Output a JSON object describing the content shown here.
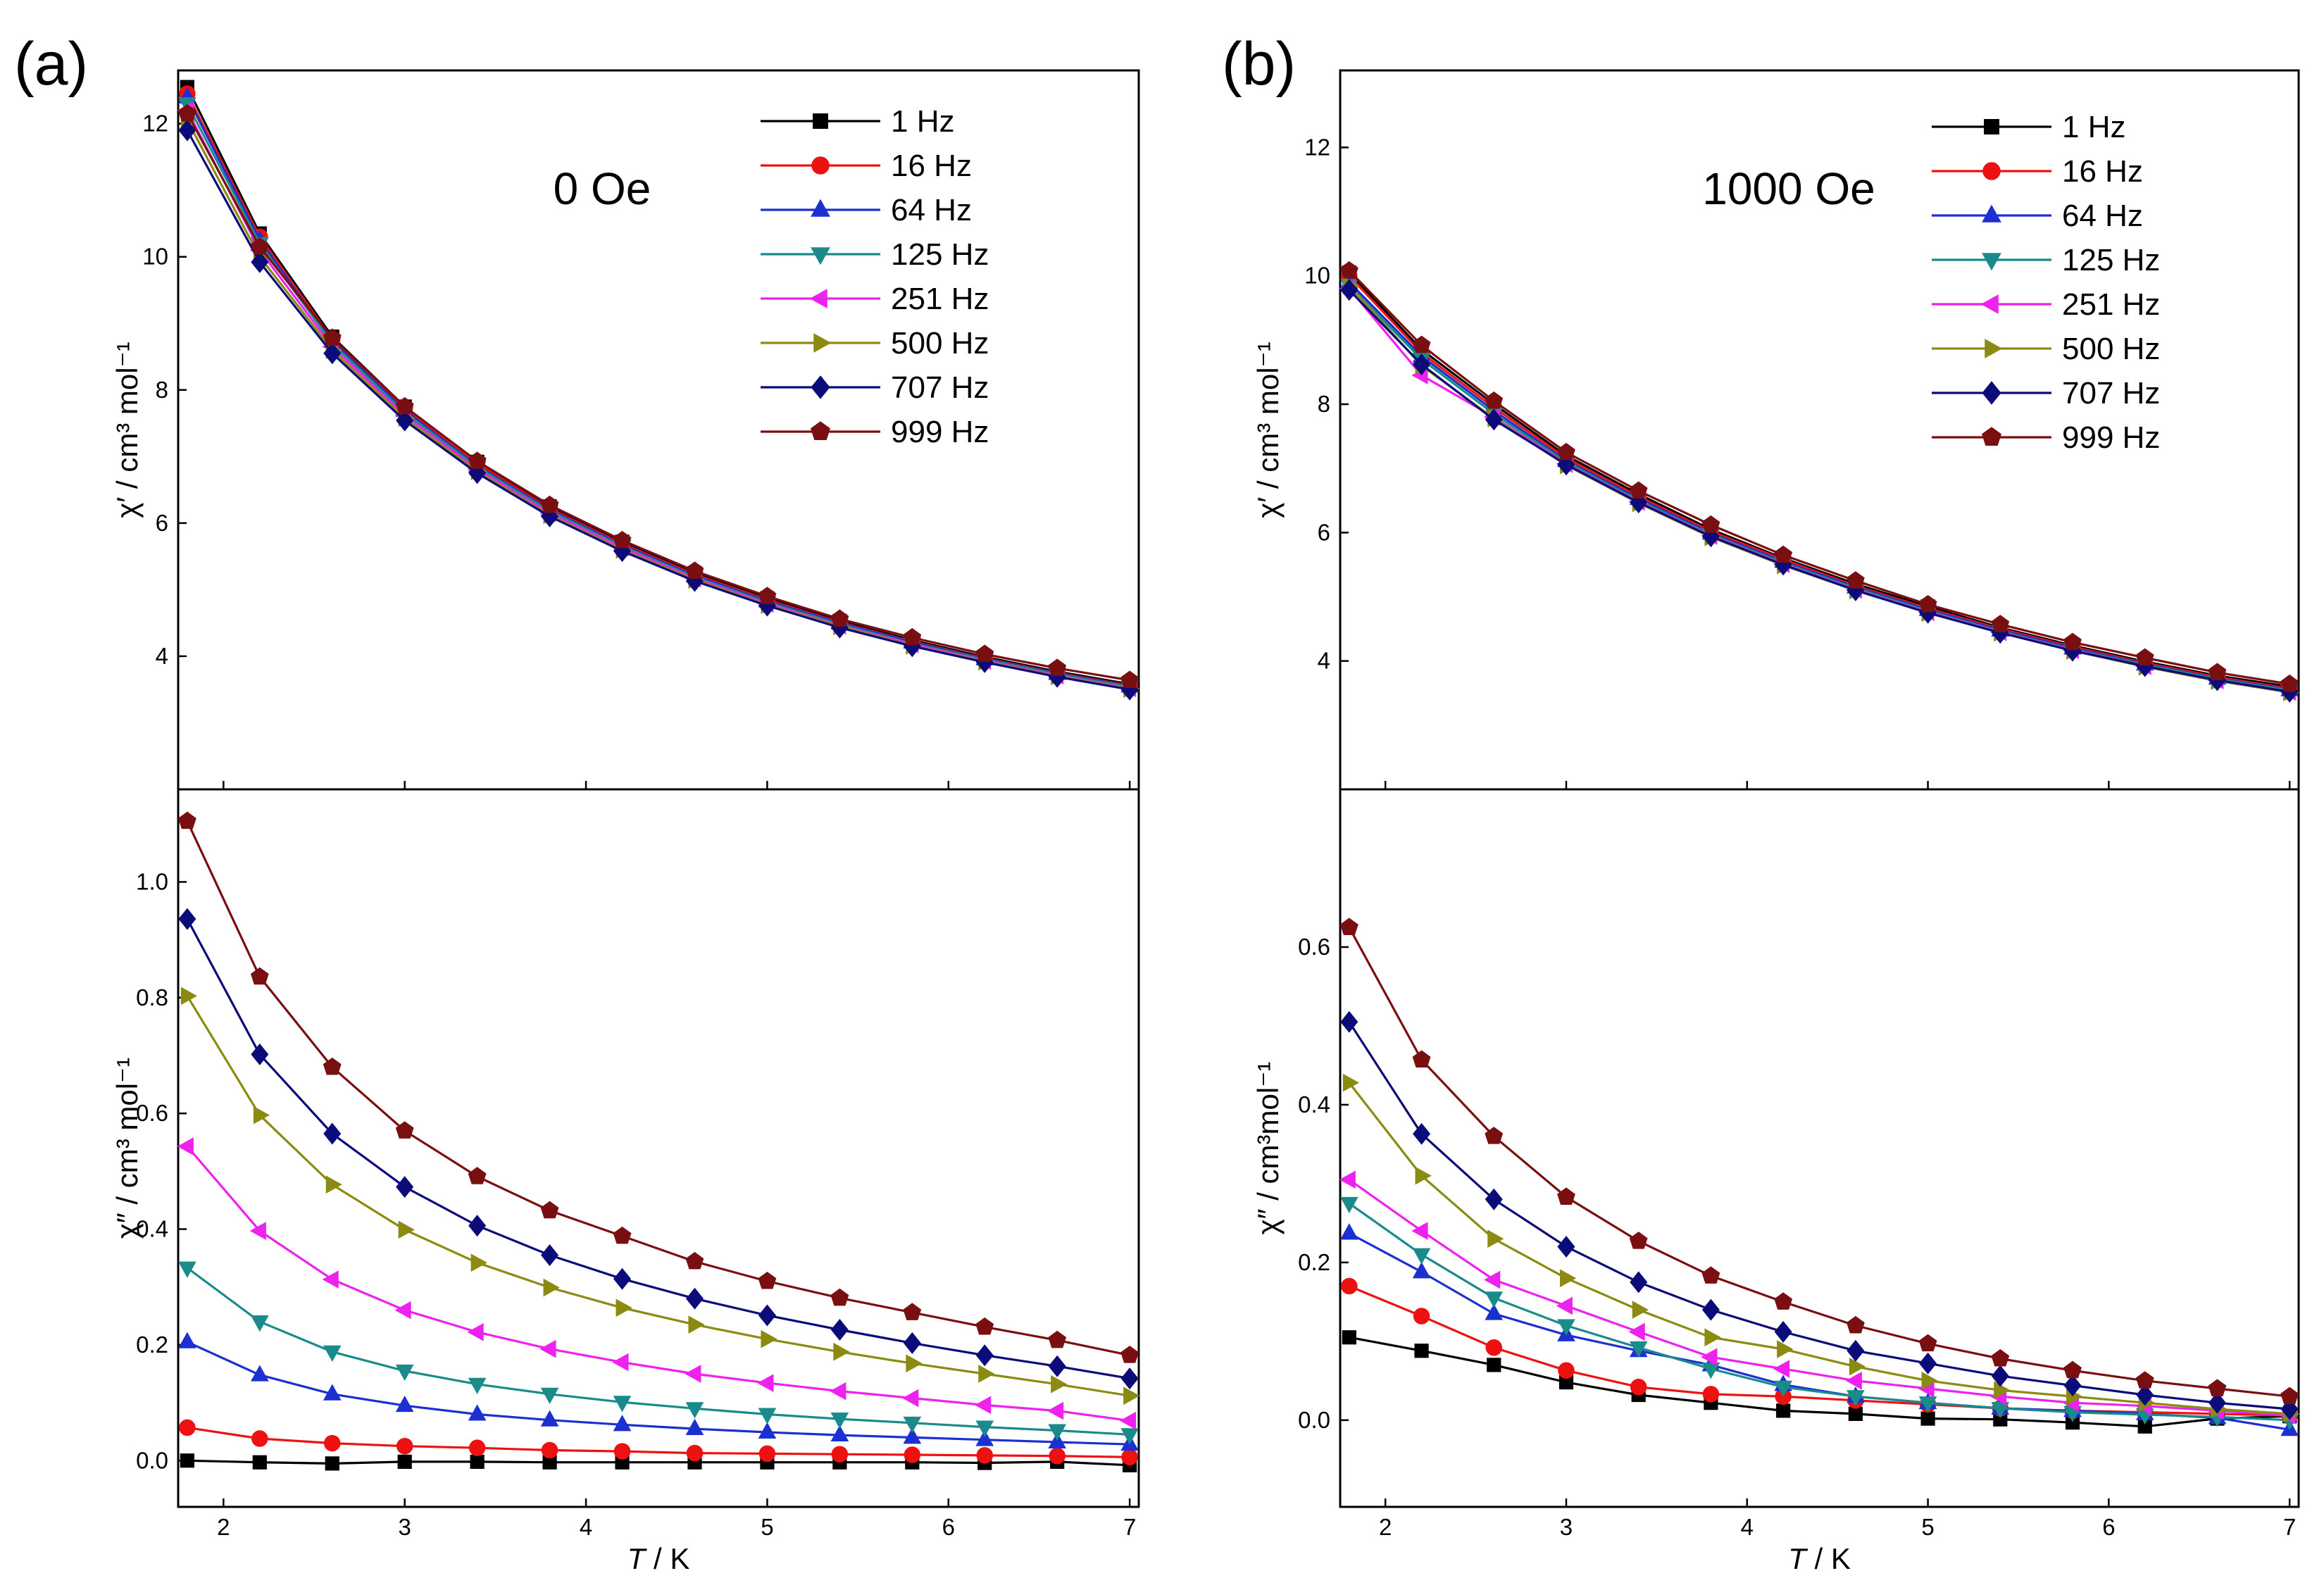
{
  "colors": {
    "series": [
      "#000000",
      "#ee1111",
      "#1c2fd1",
      "#1a8a8a",
      "#ee22ee",
      "#8b8b12",
      "#0b0b7a",
      "#7a0f12"
    ],
    "axis": "#000000"
  },
  "chart_data": [
    {
      "type": "line",
      "panel_label": "(a)",
      "field_label": "0 Oe",
      "x": [
        1.8,
        2.2,
        2.6,
        3.0,
        3.4,
        3.8,
        4.2,
        4.6,
        5.0,
        5.4,
        5.8,
        6.2,
        6.6,
        7.0
      ],
      "xlim": [
        1.75,
        7.05
      ],
      "xticks": [
        2,
        3,
        4,
        5,
        6,
        7
      ],
      "xlabel_italic": "T",
      "xlabel_rest": " / K",
      "legend": [
        "1 Hz",
        "16 Hz",
        "64 Hz",
        "125 Hz",
        "251 Hz",
        "500 Hz",
        "707 Hz",
        "999 Hz"
      ],
      "markers": [
        "square",
        "circle",
        "triangle-up",
        "triangle-down",
        "triangle-left",
        "triangle-right",
        "diamond",
        "pentagon"
      ],
      "upper": {
        "ylabel": "χ′ / cm³ mol⁻¹",
        "ylim": [
          2.0,
          12.8
        ],
        "yticks": [
          4,
          6,
          8,
          10,
          12
        ],
        "series": [
          {
            "name": "1 Hz",
            "values": [
              12.55,
              10.35,
              8.8,
              7.75,
              6.92,
              6.25,
              5.72,
              5.25,
              4.87,
              4.53,
              4.24,
              3.99,
              3.77,
              3.58
            ]
          },
          {
            "name": "16 Hz",
            "values": [
              12.45,
              10.3,
              8.76,
              7.72,
              6.89,
              6.22,
              5.69,
              5.23,
              4.85,
              4.51,
              4.22,
              3.97,
              3.75,
              3.56
            ]
          },
          {
            "name": "64 Hz",
            "values": [
              12.4,
              10.25,
              8.73,
              7.69,
              6.86,
              6.2,
              5.67,
              5.21,
              4.83,
              4.5,
              4.21,
              3.96,
              3.74,
              3.55
            ]
          },
          {
            "name": "125 Hz",
            "values": [
              12.3,
              10.2,
              8.7,
              7.66,
              6.84,
              6.18,
              5.65,
              5.19,
              4.81,
              4.48,
              4.19,
              3.95,
              3.73,
              3.54
            ]
          },
          {
            "name": "251 Hz",
            "values": [
              12.2,
              10.1,
              8.65,
              7.62,
              6.81,
              6.15,
              5.63,
              5.17,
              4.79,
              4.46,
              4.18,
              3.93,
              3.71,
              3.52
            ]
          },
          {
            "name": "500 Hz",
            "values": [
              12.05,
              10.0,
              8.6,
              7.58,
              6.78,
              6.12,
              5.6,
              5.15,
              4.77,
              4.45,
              4.16,
              3.92,
              3.7,
              3.51
            ]
          },
          {
            "name": "707 Hz",
            "values": [
              11.9,
              9.92,
              8.55,
              7.54,
              6.75,
              6.1,
              5.58,
              5.13,
              4.76,
              4.43,
              4.15,
              3.91,
              3.69,
              3.5
            ]
          },
          {
            "name": "999 Hz",
            "values": [
              12.15,
              10.15,
              8.78,
              7.75,
              6.93,
              6.27,
              5.74,
              5.28,
              4.9,
              4.56,
              4.28,
              4.03,
              3.82,
              3.64
            ]
          }
        ]
      },
      "lower": {
        "ylabel": "χ″ / cm³ mol⁻¹",
        "ylim": [
          -0.08,
          1.16
        ],
        "yticks": [
          0.0,
          0.2,
          0.4,
          0.6,
          0.8,
          1.0
        ],
        "series": [
          {
            "name": "1 Hz",
            "values": [
              0.0,
              -0.003,
              -0.005,
              -0.002,
              -0.002,
              -0.003,
              -0.003,
              -0.003,
              -0.003,
              -0.003,
              -0.003,
              -0.004,
              -0.002,
              -0.008
            ]
          },
          {
            "name": "16 Hz",
            "values": [
              0.057,
              0.038,
              0.03,
              0.025,
              0.022,
              0.018,
              0.016,
              0.013,
              0.012,
              0.011,
              0.01,
              0.009,
              0.008,
              0.006
            ]
          },
          {
            "name": "64 Hz",
            "values": [
              0.205,
              0.148,
              0.115,
              0.095,
              0.08,
              0.07,
              0.062,
              0.055,
              0.049,
              0.044,
              0.04,
              0.036,
              0.032,
              0.028
            ]
          },
          {
            "name": "125 Hz",
            "values": [
              0.333,
              0.24,
              0.188,
              0.155,
              0.132,
              0.115,
              0.101,
              0.09,
              0.08,
              0.072,
              0.065,
              0.058,
              0.052,
              0.045
            ]
          },
          {
            "name": "251 Hz",
            "values": [
              0.543,
              0.397,
              0.313,
              0.26,
              0.222,
              0.193,
              0.17,
              0.15,
              0.134,
              0.12,
              0.108,
              0.096,
              0.086,
              0.069
            ]
          },
          {
            "name": "500 Hz",
            "values": [
              0.803,
              0.597,
              0.477,
              0.399,
              0.342,
              0.299,
              0.264,
              0.235,
              0.21,
              0.188,
              0.168,
              0.15,
              0.132,
              0.112
            ]
          },
          {
            "name": "707 Hz",
            "values": [
              0.936,
              0.702,
              0.565,
              0.473,
              0.406,
              0.355,
              0.314,
              0.28,
              0.251,
              0.226,
              0.203,
              0.182,
              0.163,
              0.142
            ]
          },
          {
            "name": "999 Hz",
            "values": [
              1.105,
              0.836,
              0.68,
              0.57,
              0.491,
              0.432,
              0.388,
              0.344,
              0.31,
              0.281,
              0.256,
              0.231,
              0.208,
              0.182
            ]
          }
        ]
      }
    },
    {
      "type": "line",
      "panel_label": "(b)",
      "field_label": "1000 Oe",
      "x": [
        1.8,
        2.2,
        2.6,
        3.0,
        3.4,
        3.8,
        4.2,
        4.6,
        5.0,
        5.4,
        5.8,
        6.2,
        6.6,
        7.0
      ],
      "xlim": [
        1.75,
        7.05
      ],
      "xticks": [
        2,
        3,
        4,
        5,
        6,
        7
      ],
      "xlabel_italic": "T",
      "xlabel_rest": " / K",
      "legend": [
        "1 Hz",
        "16 Hz",
        "64 Hz",
        "125 Hz",
        "251 Hz",
        "500 Hz",
        "707 Hz",
        "999 Hz"
      ],
      "markers": [
        "square",
        "circle",
        "triangle-up",
        "triangle-down",
        "triangle-left",
        "triangle-right",
        "diamond",
        "pentagon"
      ],
      "upper": {
        "ylabel": "χ′ / cm³ mol⁻¹",
        "ylim": [
          2.0,
          13.2
        ],
        "yticks": [
          4,
          6,
          8,
          10,
          12
        ],
        "series": [
          {
            "name": "1 Hz",
            "values": [
              10.05,
              8.85,
              8.0,
              7.2,
              6.6,
              6.05,
              5.6,
              5.2,
              4.85,
              4.52,
              4.24,
              3.99,
              3.77,
              3.6
            ]
          },
          {
            "name": "16 Hz",
            "values": [
              10.0,
              8.8,
              7.95,
              7.16,
              6.56,
              6.02,
              5.58,
              5.17,
              4.82,
              4.5,
              4.22,
              3.97,
              3.75,
              3.57
            ]
          },
          {
            "name": "64 Hz",
            "values": [
              9.9,
              8.75,
              7.9,
              7.12,
              6.53,
              5.99,
              5.55,
              5.15,
              4.8,
              4.48,
              4.2,
              3.95,
              3.73,
              3.55
            ]
          },
          {
            "name": "125 Hz",
            "values": [
              9.85,
              8.7,
              7.85,
              7.1,
              6.5,
              5.97,
              5.53,
              5.13,
              4.78,
              4.46,
              4.18,
              3.94,
              3.72,
              3.54
            ]
          },
          {
            "name": "251 Hz",
            "values": [
              9.8,
              8.45,
              7.8,
              7.07,
              6.48,
              5.95,
              5.51,
              5.11,
              4.76,
              4.45,
              4.17,
              3.92,
              3.7,
              3.52
            ]
          },
          {
            "name": "500 Hz",
            "values": [
              9.85,
              8.6,
              7.78,
              7.05,
              6.46,
              5.93,
              5.49,
              5.1,
              4.75,
              4.44,
              4.16,
              3.91,
              3.69,
              3.51
            ]
          },
          {
            "name": "707 Hz",
            "values": [
              9.78,
              8.62,
              7.76,
              7.06,
              6.47,
              5.94,
              5.5,
              5.1,
              4.75,
              4.44,
              4.16,
              3.92,
              3.7,
              3.52
            ]
          },
          {
            "name": "999 Hz",
            "values": [
              10.08,
              8.92,
              8.05,
              7.25,
              6.65,
              6.12,
              5.65,
              5.25,
              4.88,
              4.57,
              4.29,
              4.05,
              3.82,
              3.64
            ]
          }
        ]
      },
      "lower": {
        "ylabel": "χ″ / cm³mol⁻¹",
        "ylim": [
          -0.11,
          0.8
        ],
        "yticks": [
          0.0,
          0.2,
          0.4,
          0.6
        ],
        "series": [
          {
            "name": "1 Hz",
            "values": [
              0.105,
              0.088,
              0.07,
              0.048,
              0.032,
              0.022,
              0.012,
              0.008,
              0.002,
              0.001,
              -0.003,
              -0.008,
              0.002,
              0.005
            ]
          },
          {
            "name": "16 Hz",
            "values": [
              0.17,
              0.132,
              0.092,
              0.063,
              0.042,
              0.033,
              0.03,
              0.025,
              0.02,
              0.015,
              0.012,
              0.01,
              0.008,
              0.006
            ]
          },
          {
            "name": "64 Hz",
            "values": [
              0.237,
              0.188,
              0.135,
              0.108,
              0.088,
              0.07,
              0.045,
              0.03,
              0.022,
              0.015,
              0.012,
              0.008,
              0.003,
              -0.012
            ]
          },
          {
            "name": "125 Hz",
            "values": [
              0.275,
              0.21,
              0.155,
              0.12,
              0.092,
              0.065,
              0.042,
              0.03,
              0.022,
              0.015,
              0.01,
              0.007,
              0.004,
              0.0
            ]
          },
          {
            "name": "251 Hz",
            "values": [
              0.305,
              0.24,
              0.178,
              0.145,
              0.112,
              0.08,
              0.065,
              0.05,
              0.04,
              0.03,
              0.022,
              0.018,
              0.012,
              0.006
            ]
          },
          {
            "name": "500 Hz",
            "values": [
              0.428,
              0.31,
              0.23,
              0.18,
              0.14,
              0.105,
              0.09,
              0.068,
              0.05,
              0.038,
              0.03,
              0.022,
              0.014,
              0.008
            ]
          },
          {
            "name": "707 Hz",
            "values": [
              0.505,
              0.363,
              0.28,
              0.22,
              0.175,
              0.14,
              0.112,
              0.088,
              0.072,
              0.056,
              0.044,
              0.032,
              0.022,
              0.014
            ]
          },
          {
            "name": "999 Hz",
            "values": [
              0.625,
              0.457,
              0.36,
              0.283,
              0.227,
              0.183,
              0.15,
              0.12,
              0.097,
              0.078,
              0.063,
              0.05,
              0.04,
              0.03
            ]
          }
        ]
      }
    }
  ]
}
